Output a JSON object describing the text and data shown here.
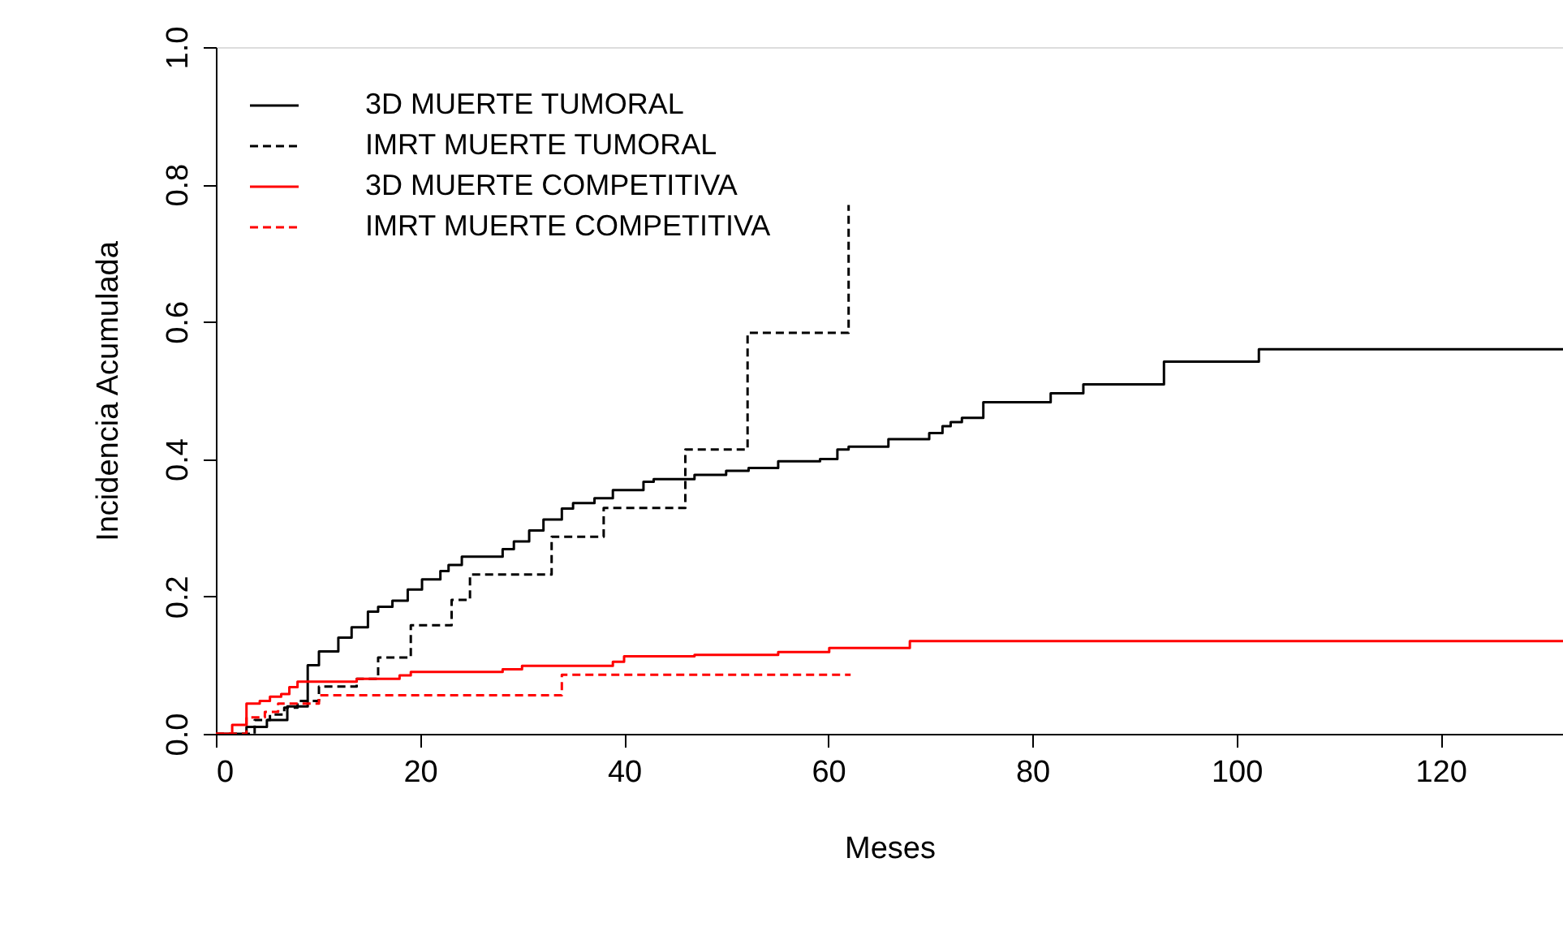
{
  "chart_data": {
    "type": "step",
    "xlabel": "Meses",
    "ylabel": "Incidencia Acumulada",
    "xlim": [
      0,
      132
    ],
    "xticks": [
      0,
      20,
      40,
      60,
      80,
      100,
      120
    ],
    "ylim": [
      0,
      1
    ],
    "yticks": [
      {
        "value": 0,
        "label": "0.0"
      },
      {
        "value": 0.2,
        "label": "0.2"
      },
      {
        "value": 0.4,
        "label": "0.4"
      },
      {
        "value": 0.6,
        "label": "0.6"
      },
      {
        "value": 0.8,
        "label": "0.8"
      },
      {
        "value": 1,
        "label": "1.0"
      }
    ],
    "grid": false,
    "legend": "top left",
    "series": [
      {
        "name": "3D MUERTE TUMORAL",
        "color": "#000000",
        "line_style": "solid",
        "x": [
          0,
          3,
          5,
          7,
          9.0,
          10.1,
          12.0,
          13.3,
          14.9,
          15.9,
          17.3,
          18.8,
          20.2,
          22.0,
          22.8,
          24.1,
          28.1,
          29.2,
          30.7,
          32.1,
          33.9,
          35.0,
          37.1,
          38.9,
          41.9,
          42.9,
          46.9,
          50.0,
          52.2,
          55.1,
          59.2,
          60.9,
          62.0,
          65.9,
          69.9,
          71.2,
          72.0,
          73.1,
          75.2,
          81.8,
          85.0,
          92.9,
          102.2,
          132
        ],
        "values": [
          0,
          0.01,
          0.02,
          0.04,
          0.1,
          0.12,
          0.14,
          0.155,
          0.178,
          0.185,
          0.194,
          0.21,
          0.225,
          0.237,
          0.246,
          0.258,
          0.269,
          0.28,
          0.296,
          0.312,
          0.328,
          0.336,
          0.343,
          0.355,
          0.367,
          0.371,
          0.377,
          0.383,
          0.387,
          0.397,
          0.4,
          0.414,
          0.418,
          0.429,
          0.438,
          0.448,
          0.454,
          0.46,
          0.483,
          0.496,
          0.509,
          0.542,
          0.56,
          0.56
        ]
      },
      {
        "name": "IMRT MUERTE TUMORAL",
        "color": "#000000",
        "line_style": "dashed",
        "x": [
          0,
          3.8,
          5.3,
          6.7,
          8.0,
          10.1,
          13.8,
          15.9,
          19.1,
          23.1,
          24.9,
          32.9,
          38.0,
          46.0,
          52.1,
          62.0
        ],
        "values": [
          0,
          0.02,
          0.028,
          0.038,
          0.048,
          0.069,
          0.08,
          0.111,
          0.158,
          0.195,
          0.232,
          0.287,
          0.329,
          0.414,
          0.584,
          0.77
        ]
      },
      {
        "name": "3D MUERTE COMPETITIVA",
        "color": "#ff0000",
        "line_style": "solid",
        "x": [
          0,
          1.6,
          3.0,
          4.3,
          5.3,
          6.4,
          7.2,
          8.0,
          13.8,
          18.0,
          19.1,
          28.1,
          30.0,
          38.9,
          40.0,
          46.9,
          55.1,
          60.1,
          68.0,
          132
        ],
        "values": [
          0,
          0.013,
          0.044,
          0.048,
          0.054,
          0.058,
          0.068,
          0.076,
          0.08,
          0.085,
          0.09,
          0.094,
          0.099,
          0.105,
          0.113,
          0.115,
          0.119,
          0.125,
          0.135,
          0.135
        ]
      },
      {
        "name": "IMRT MUERTE COMPETITIVA",
        "color": "#ff0000",
        "line_style": "dashed",
        "x": [
          0,
          3.0,
          4.8,
          6.1,
          10.1,
          33.9,
          62.2
        ],
        "values": [
          0,
          0.024,
          0.032,
          0.044,
          0.056,
          0.086,
          0.086
        ]
      }
    ]
  }
}
